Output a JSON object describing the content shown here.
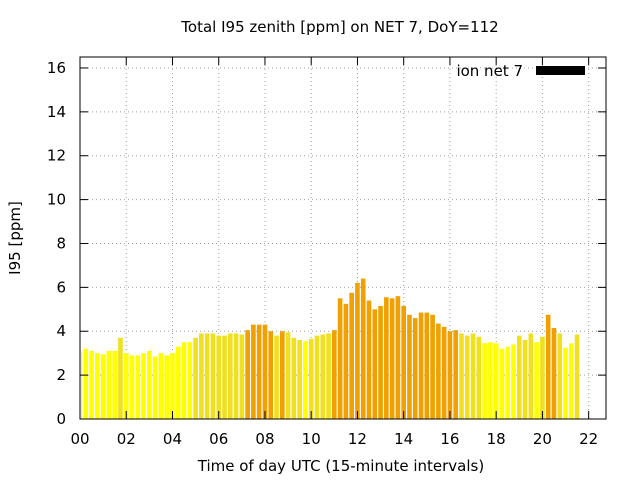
{
  "chart_data": {
    "type": "bar",
    "title": "Total I95 zenith [ppm] on NET 7, DoY=112",
    "xlabel": "Time of day UTC (15-minute intervals)",
    "ylabel": "I95 [ppm]",
    "ylim": [
      0,
      16.5
    ],
    "xlim": [
      0,
      22.75
    ],
    "y_ticks": [
      0,
      2,
      4,
      6,
      8,
      10,
      12,
      14,
      16
    ],
    "x_ticks": [
      0,
      2,
      4,
      6,
      8,
      10,
      12,
      14,
      16,
      18,
      20,
      22
    ],
    "x_tick_labels": [
      "00",
      "02",
      "04",
      "06",
      "08",
      "10",
      "12",
      "14",
      "16",
      "18",
      "20",
      "22"
    ],
    "grid": true,
    "legend": {
      "label": "ion net 7",
      "color": "#000000",
      "placement": "top-right"
    },
    "colors": {
      "low": "#ffff00",
      "mid": "#f0e020",
      "high": "#f0a000"
    },
    "interval_hours": 0.25,
    "values": [
      3.1,
      3.2,
      3.1,
      3.0,
      2.95,
      3.1,
      3.1,
      3.7,
      3.0,
      2.9,
      2.9,
      3.0,
      3.1,
      2.85,
      3.0,
      2.9,
      3.0,
      3.3,
      3.5,
      3.5,
      3.7,
      3.9,
      3.9,
      3.9,
      3.8,
      3.8,
      3.9,
      3.9,
      3.85,
      4.05,
      4.3,
      4.3,
      4.3,
      4.0,
      3.8,
      4.0,
      3.95,
      3.7,
      3.6,
      3.55,
      3.65,
      3.8,
      3.85,
      3.9,
      4.05,
      5.5,
      5.25,
      5.75,
      6.2,
      6.4,
      5.4,
      5.0,
      5.15,
      5.55,
      5.5,
      5.6,
      5.15,
      4.75,
      4.6,
      4.85,
      4.85,
      4.75,
      4.35,
      4.2,
      4.0,
      4.05,
      3.9,
      3.8,
      3.9,
      3.75,
      3.45,
      3.5,
      3.45,
      3.2,
      3.3,
      3.4,
      3.8,
      3.6,
      3.9,
      3.5,
      3.75,
      4.75,
      4.15,
      3.9,
      3.25,
      3.45,
      3.85
    ]
  }
}
